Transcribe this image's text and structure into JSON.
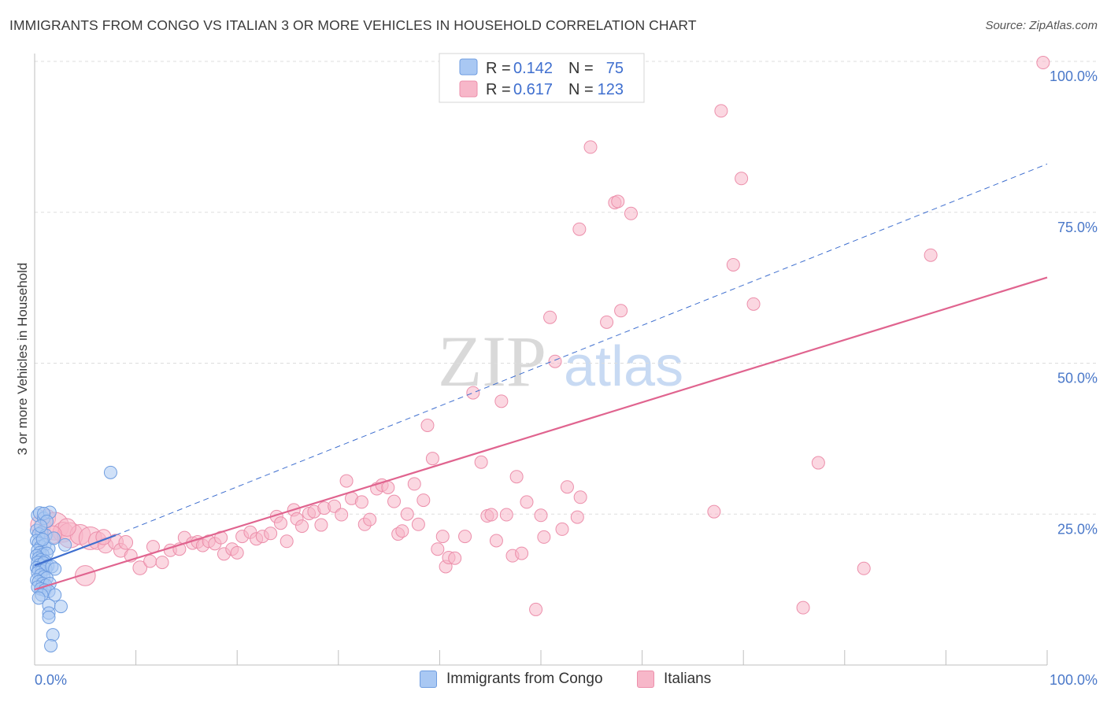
{
  "title": "IMMIGRANTS FROM CONGO VS ITALIAN 3 OR MORE VEHICLES IN HOUSEHOLD CORRELATION CHART",
  "source": "Source: ZipAtlas.com",
  "watermark": {
    "zip": "ZIP",
    "atlas": "atlas"
  },
  "colors": {
    "congo_fill": "#a9c8f3",
    "congo_stroke": "#6f9de0",
    "congo_line": "#3f6fcf",
    "italian_fill": "#f7b7c9",
    "italian_stroke": "#ec8fab",
    "italian_line": "#e0648f",
    "grid": "#dddddd",
    "axis_label": "#4a78c9"
  },
  "legend": {
    "rows": [
      {
        "r_label": "R =",
        "r_value": "0.142",
        "n_label": "N =",
        "n_value": "75"
      },
      {
        "r_label": "R =",
        "r_value": "0.617",
        "n_label": "N =",
        "n_value": "123"
      }
    ]
  },
  "bottom_legend": [
    "Immigrants from Congo",
    "Italians"
  ],
  "chart_data": {
    "type": "scatter",
    "title": "IMMIGRANTS FROM CONGO VS ITALIAN 3 OR MORE VEHICLES IN HOUSEHOLD CORRELATION CHART",
    "xlabel": "",
    "ylabel": "3 or more Vehicles in Household",
    "xlim": [
      0,
      100
    ],
    "ylim": [
      0,
      100
    ],
    "x_tick_labels": [
      "0.0%",
      "100.0%"
    ],
    "y_ticks": [
      25,
      50,
      75,
      100
    ],
    "y_tick_labels": [
      "25.0%",
      "50.0%",
      "75.0%",
      "100.0%"
    ],
    "grid": true,
    "series": [
      {
        "name": "Immigrants from Congo",
        "r": 0.142,
        "n": 75,
        "trend": {
          "x": [
            0,
            8
          ],
          "y": [
            16.5,
            21.5
          ],
          "style": "solid"
        },
        "points": [
          [
            0.3,
            24.8,
            1
          ],
          [
            0.5,
            25.2,
            1
          ],
          [
            0.9,
            24.3,
            1
          ],
          [
            1.5,
            25.3,
            1
          ],
          [
            0.2,
            22.3,
            1
          ],
          [
            0.7,
            22.0,
            1
          ],
          [
            0.4,
            21.7,
            1
          ],
          [
            1.1,
            21.5,
            1
          ],
          [
            0.2,
            20.6,
            1
          ],
          [
            0.4,
            20.2,
            1
          ],
          [
            0.6,
            19.6,
            1
          ],
          [
            1.0,
            19.9,
            1
          ],
          [
            1.4,
            19.3,
            1
          ],
          [
            0.3,
            19.0,
            1
          ],
          [
            0.5,
            18.6,
            1
          ],
          [
            0.8,
            18.3,
            1
          ],
          [
            1.2,
            18.5,
            1
          ],
          [
            0.2,
            18.1,
            1
          ],
          [
            0.4,
            17.7,
            1
          ],
          [
            0.6,
            17.4,
            1
          ],
          [
            1.0,
            17.2,
            1
          ],
          [
            0.3,
            17.0,
            1
          ],
          [
            0.5,
            16.6,
            1
          ],
          [
            0.9,
            16.9,
            1
          ],
          [
            1.3,
            16.4,
            1
          ],
          [
            0.2,
            16.1,
            1
          ],
          [
            0.4,
            15.8,
            1
          ],
          [
            0.7,
            15.6,
            1
          ],
          [
            1.1,
            15.9,
            1
          ],
          [
            1.7,
            16.3,
            1
          ],
          [
            2.0,
            15.9,
            1
          ],
          [
            0.3,
            15.3,
            1
          ],
          [
            0.6,
            14.9,
            1
          ],
          [
            0.9,
            14.6,
            1
          ],
          [
            1.2,
            14.4,
            1
          ],
          [
            0.2,
            14.1,
            1
          ],
          [
            0.4,
            13.8,
            1
          ],
          [
            0.8,
            13.5,
            1
          ],
          [
            1.1,
            13.2,
            1
          ],
          [
            1.5,
            13.5,
            1
          ],
          [
            0.3,
            12.9,
            1
          ],
          [
            0.6,
            12.6,
            1
          ],
          [
            1.0,
            12.4,
            1
          ],
          [
            1.4,
            12.2,
            1
          ],
          [
            0.7,
            11.6,
            1
          ],
          [
            2.0,
            11.6,
            1
          ],
          [
            0.4,
            11.1,
            1
          ],
          [
            1.4,
            9.9,
            1
          ],
          [
            2.6,
            9.7,
            1
          ],
          [
            1.4,
            8.6,
            1
          ],
          [
            1.4,
            7.9,
            1
          ],
          [
            1.8,
            5.0,
            1
          ],
          [
            1.6,
            3.2,
            1
          ],
          [
            7.5,
            31.9,
            1
          ],
          [
            3.0,
            19.9,
            1
          ],
          [
            0.9,
            25.1,
            1
          ],
          [
            1.2,
            23.8,
            1
          ],
          [
            0.6,
            23.0,
            1
          ],
          [
            1.9,
            21.0,
            1
          ],
          [
            0.8,
            20.8,
            1
          ]
        ]
      },
      {
        "name": "Italians",
        "r": 0.617,
        "n": 123,
        "trend": {
          "x": [
            0,
            100
          ],
          "y": [
            12.5,
            64.2
          ],
          "style": "solid"
        },
        "trend_extension": {
          "x": [
            8,
            100
          ],
          "y": [
            21.5,
            83.0
          ],
          "style": "dashed",
          "series": "Immigrants from Congo"
        },
        "points": [
          [
            0.6,
            23.2,
            1.6
          ],
          [
            1.2,
            24.3,
            1.4
          ],
          [
            2.0,
            23.0,
            2.2
          ],
          [
            2.8,
            22.0,
            1.6
          ],
          [
            3.5,
            21.5,
            2.0
          ],
          [
            4.5,
            21.6,
            1.6
          ],
          [
            5.5,
            21.0,
            1.8
          ],
          [
            6.2,
            20.6,
            1.4
          ],
          [
            7.0,
            19.8,
            1.2
          ],
          [
            8.0,
            20.4,
            1.2
          ],
          [
            8.5,
            19.0,
            1.1
          ],
          [
            9.5,
            18.1,
            1.0
          ],
          [
            10.4,
            16.1,
            1.1
          ],
          [
            11.4,
            17.2,
            1.0
          ],
          [
            11.7,
            19.6,
            1.0
          ],
          [
            12.6,
            17.0,
            1.0
          ],
          [
            13.4,
            19.0,
            1.0
          ],
          [
            14.3,
            19.2,
            1.0
          ],
          [
            14.8,
            21.1,
            1.0
          ],
          [
            15.6,
            20.2,
            1.0
          ],
          [
            16.1,
            20.4,
            1.0
          ],
          [
            16.6,
            19.8,
            1.0
          ],
          [
            17.2,
            20.5,
            1.0
          ],
          [
            17.8,
            20.1,
            1.0
          ],
          [
            18.4,
            21.1,
            1.0
          ],
          [
            18.7,
            18.4,
            1.0
          ],
          [
            19.5,
            19.2,
            1.0
          ],
          [
            20.0,
            18.6,
            1.0
          ],
          [
            20.5,
            21.3,
            1.0
          ],
          [
            21.3,
            22.0,
            1.0
          ],
          [
            21.9,
            20.9,
            1.0
          ],
          [
            22.5,
            21.3,
            1.0
          ],
          [
            23.3,
            21.8,
            1.0
          ],
          [
            23.9,
            24.6,
            1.0
          ],
          [
            24.3,
            23.5,
            1.0
          ],
          [
            24.9,
            20.5,
            1.0
          ],
          [
            25.6,
            25.7,
            1.0
          ],
          [
            25.9,
            24.2,
            1.0
          ],
          [
            26.4,
            23.0,
            1.0
          ],
          [
            27.1,
            25.1,
            1.0
          ],
          [
            27.6,
            25.4,
            1.0
          ],
          [
            28.3,
            23.2,
            1.0
          ],
          [
            28.6,
            26.0,
            1.0
          ],
          [
            29.6,
            26.3,
            1.0
          ],
          [
            30.3,
            24.9,
            1.0
          ],
          [
            30.8,
            30.5,
            1.0
          ],
          [
            31.3,
            27.6,
            1.0
          ],
          [
            32.3,
            27.0,
            1.0
          ],
          [
            32.6,
            23.3,
            1.0
          ],
          [
            33.1,
            24.1,
            1.0
          ],
          [
            33.8,
            29.2,
            1.0
          ],
          [
            34.3,
            29.8,
            1.0
          ],
          [
            34.9,
            29.4,
            1.0
          ],
          [
            35.5,
            27.1,
            1.0
          ],
          [
            35.9,
            21.7,
            1.0
          ],
          [
            36.3,
            22.2,
            1.0
          ],
          [
            36.8,
            25.0,
            1.0
          ],
          [
            37.5,
            30.0,
            1.0
          ],
          [
            37.9,
            23.3,
            1.0
          ],
          [
            38.4,
            27.3,
            1.0
          ],
          [
            38.8,
            39.7,
            1.0
          ],
          [
            39.3,
            34.2,
            1.0
          ],
          [
            39.8,
            19.2,
            1.0
          ],
          [
            40.3,
            21.3,
            1.0
          ],
          [
            40.6,
            16.3,
            1.0
          ],
          [
            40.9,
            17.8,
            1.0
          ],
          [
            41.5,
            17.7,
            1.0
          ],
          [
            42.5,
            21.3,
            1.0
          ],
          [
            43.3,
            45.1,
            1.0
          ],
          [
            44.1,
            33.6,
            1.0
          ],
          [
            44.7,
            24.7,
            1.0
          ],
          [
            45.1,
            24.9,
            1.0
          ],
          [
            45.6,
            20.6,
            1.0
          ],
          [
            46.1,
            43.7,
            1.0
          ],
          [
            46.6,
            24.9,
            1.0
          ],
          [
            47.2,
            18.1,
            1.0
          ],
          [
            47.6,
            31.2,
            1.0
          ],
          [
            48.1,
            18.5,
            1.0
          ],
          [
            48.6,
            27.0,
            1.0
          ],
          [
            49.5,
            9.2,
            1.0
          ],
          [
            50.0,
            24.8,
            1.0
          ],
          [
            50.3,
            21.2,
            1.0
          ],
          [
            50.9,
            57.6,
            1.0
          ],
          [
            51.4,
            50.3,
            1.0
          ],
          [
            52.1,
            22.5,
            1.0
          ],
          [
            52.6,
            29.5,
            1.0
          ],
          [
            53.8,
            72.2,
            1.0
          ],
          [
            53.6,
            24.5,
            1.0
          ],
          [
            53.9,
            27.8,
            1.0
          ],
          [
            54.9,
            85.8,
            1.0
          ],
          [
            56.5,
            56.8,
            1.0
          ],
          [
            57.3,
            76.6,
            1.0
          ],
          [
            57.6,
            76.8,
            1.0
          ],
          [
            57.9,
            58.7,
            1.0
          ],
          [
            58.9,
            74.8,
            1.0
          ],
          [
            67.1,
            25.4,
            1.0
          ],
          [
            67.8,
            91.8,
            1.0
          ],
          [
            69.0,
            66.3,
            1.0
          ],
          [
            69.8,
            80.6,
            1.0
          ],
          [
            71.0,
            59.8,
            1.0
          ],
          [
            75.9,
            9.5,
            1.0
          ],
          [
            77.4,
            33.5,
            1.0
          ],
          [
            81.9,
            16.0,
            1.0
          ],
          [
            88.5,
            67.9,
            1.0
          ],
          [
            99.6,
            99.8,
            1.0
          ],
          [
            5.0,
            14.8,
            1.6
          ],
          [
            3.2,
            22.8,
            1.4
          ],
          [
            1.8,
            21.6,
            1.4
          ],
          [
            6.8,
            21.2,
            1.2
          ],
          [
            9.0,
            20.3,
            1.1
          ]
        ]
      }
    ]
  }
}
